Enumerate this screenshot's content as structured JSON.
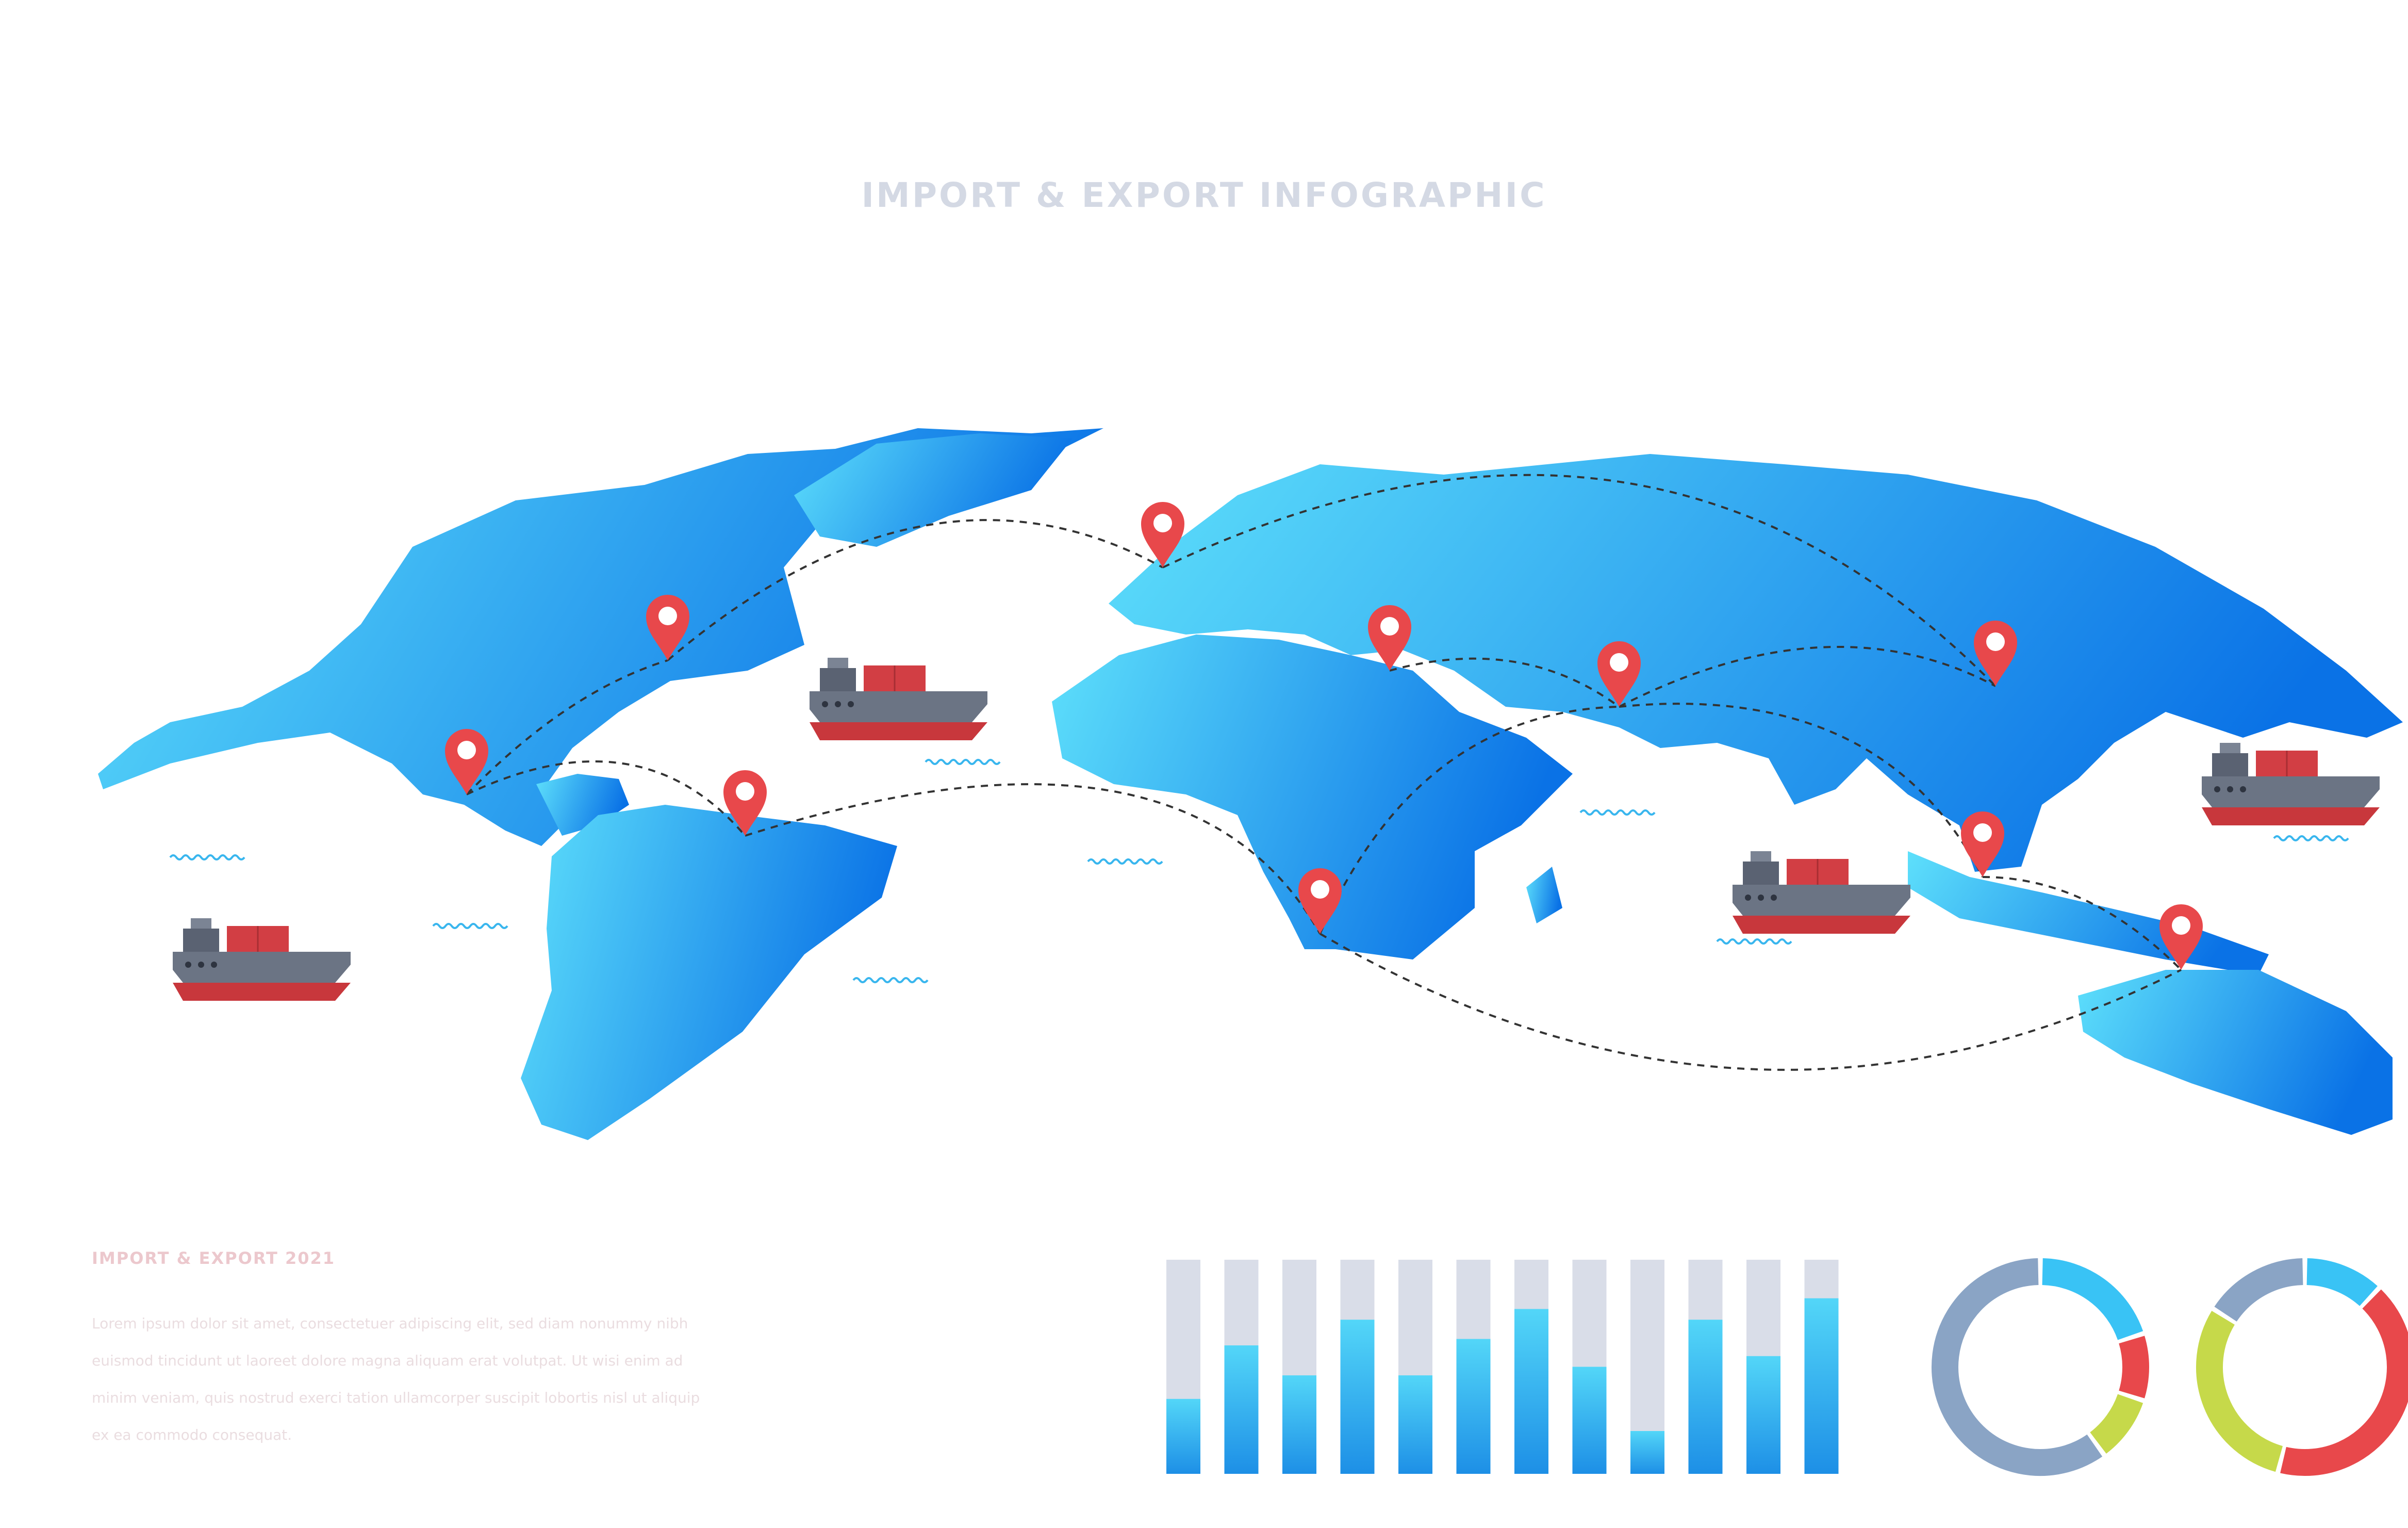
{
  "header": {
    "title": "IMPORT & EXPORT INFOGRAPHIC"
  },
  "info": {
    "heading": "IMPORT & EXPORT 2021",
    "body": "Lorem ipsum dolor sit amet, consectetuer adipiscing elit, sed diam nonummy nibh euismod tincidunt ut laoreet dolore magna aliquam erat volutpat. Ut wisi enim ad minim veniam, quis nostrud exerci tation ullamcorper suscipit lobortis nisl ut aliquip ex ea commodo consequat."
  },
  "colors": {
    "map_light": "#5ee0fb",
    "map_dark": "#0a72e6",
    "pin": "#e8484b",
    "bar_track": "#d9dde8",
    "bar_fill_light": "#53d6f8",
    "bar_fill_dark": "#1d8fe6"
  },
  "icons": {
    "pin": "location-pin-icon",
    "ship": "cargo-ship-icon",
    "wave": "wave-icon"
  },
  "chart_data": [
    {
      "type": "bar",
      "ylim": [
        0,
        1
      ],
      "values": [
        0.35,
        0.6,
        0.46,
        0.72,
        0.46,
        0.63,
        0.77,
        0.5,
        0.2,
        0.72,
        0.55,
        0.82
      ]
    },
    {
      "type": "pie",
      "values": [
        0.2,
        0.1,
        0.1,
        0.6
      ],
      "colors": [
        "#39c3f5",
        "#e8484b",
        "#c6d94a",
        "#8aa4c5"
      ]
    },
    {
      "type": "pie",
      "values": [
        0.12,
        0.42,
        0.3,
        0.16
      ],
      "colors": [
        "#39c3f5",
        "#e8484b",
        "#c6d94a",
        "#8aa4c5"
      ]
    }
  ]
}
